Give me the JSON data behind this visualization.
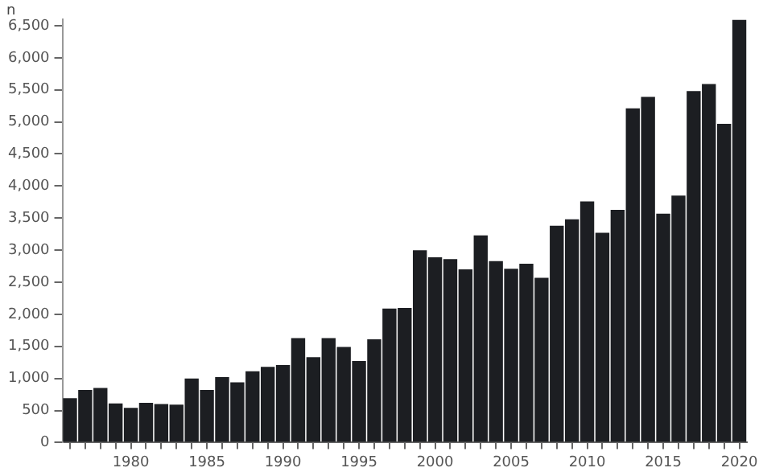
{
  "chart_data": {
    "type": "bar",
    "ylabel": "n",
    "categories": [
      null,
      null,
      null,
      null,
      "1980",
      null,
      null,
      null,
      null,
      "1985",
      null,
      null,
      null,
      null,
      "1990",
      null,
      null,
      null,
      null,
      "1995",
      null,
      null,
      null,
      null,
      "2000",
      null,
      null,
      null,
      null,
      "2005",
      null,
      null,
      null,
      null,
      "2010",
      null,
      null,
      null,
      null,
      "2015",
      null,
      null,
      null,
      null,
      "2020"
    ],
    "values": [
      690,
      820,
      850,
      610,
      540,
      620,
      600,
      590,
      1000,
      820,
      1020,
      940,
      1110,
      1180,
      1210,
      1630,
      1330,
      1630,
      1490,
      1270,
      1610,
      2090,
      2100,
      3000,
      2890,
      2860,
      2700,
      3230,
      2830,
      2710,
      2790,
      2570,
      3380,
      3480,
      3760,
      3270,
      3630,
      5210,
      5390,
      3570,
      3850,
      5480,
      5590,
      4970,
      6590
    ],
    "color": "#1c1e22",
    "ylim": [
      0,
      6600
    ],
    "yticks": [
      0,
      {
        "value": 500,
        "label": "500"
      },
      {
        "value": 1000,
        "label": "1,000"
      },
      {
        "value": 1500,
        "label": "1,500"
      },
      {
        "value": 2000,
        "label": "2,000"
      },
      {
        "value": 2500,
        "label": "2,500"
      },
      {
        "value": 3000,
        "label": "3,000"
      },
      {
        "value": 3500,
        "label": "3,500"
      },
      {
        "value": 4000,
        "label": "4,000"
      },
      {
        "value": 4500,
        "label": "4,500"
      },
      {
        "value": 5000,
        "label": "5,000"
      },
      {
        "value": 5500,
        "label": "5,500"
      },
      {
        "value": 6000,
        "label": "6,000"
      },
      {
        "value": 6500,
        "label": "6,500"
      }
    ],
    "grid": false
  }
}
